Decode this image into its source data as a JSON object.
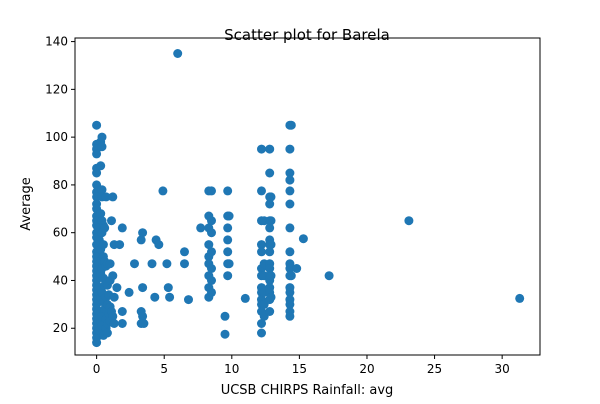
{
  "chart_data": {
    "type": "scatter",
    "title": "Scatter plot for Barela",
    "xlabel": "UCSB CHIRPS Rainfall: avg",
    "ylabel": "Average",
    "xlim": [
      -1.6,
      32.8
    ],
    "ylim": [
      8.8,
      141.5
    ],
    "xticks": [
      0,
      5,
      10,
      15,
      20,
      25,
      30
    ],
    "yticks": [
      20,
      40,
      60,
      80,
      100,
      120,
      140
    ],
    "grid": false,
    "legend": "none",
    "marker_color": "#1f77b4",
    "series": [
      {
        "points": [
          [
            0.0,
            105.0
          ],
          [
            0.0,
            97.0
          ],
          [
            0.0,
            95.0
          ],
          [
            0.0,
            93.0
          ],
          [
            0.0,
            87.0
          ],
          [
            0.0,
            85.0
          ],
          [
            0.0,
            80.0
          ],
          [
            0.0,
            77.0
          ],
          [
            0.0,
            75.0
          ],
          [
            0.0,
            72.0
          ],
          [
            0.0,
            70.0
          ],
          [
            0.0,
            67.0
          ],
          [
            0.0,
            65.0
          ],
          [
            0.0,
            63.0
          ],
          [
            0.0,
            60.0
          ],
          [
            0.0,
            58.0
          ],
          [
            0.0,
            55.0
          ],
          [
            0.0,
            52.0
          ],
          [
            0.0,
            50.0
          ],
          [
            0.0,
            48.0
          ],
          [
            0.0,
            46.0
          ],
          [
            0.0,
            44.0
          ],
          [
            0.0,
            42.0
          ],
          [
            0.0,
            40.0
          ],
          [
            0.0,
            38.0
          ],
          [
            0.0,
            36.0
          ],
          [
            0.0,
            34.0
          ],
          [
            0.0,
            32.0
          ],
          [
            0.0,
            30.0
          ],
          [
            0.0,
            28.0
          ],
          [
            0.0,
            26.0
          ],
          [
            0.0,
            24.0
          ],
          [
            0.0,
            22.0
          ],
          [
            0.0,
            20.0
          ],
          [
            0.0,
            18.0
          ],
          [
            0.0,
            16.0
          ],
          [
            0.0,
            14.0
          ],
          [
            0.2,
            62.0
          ],
          [
            0.2,
            57.0
          ],
          [
            0.2,
            47.0
          ],
          [
            0.2,
            37.0
          ],
          [
            0.2,
            27.0
          ],
          [
            0.2,
            19.0
          ],
          [
            0.3,
            98.0
          ],
          [
            0.3,
            88.0
          ],
          [
            0.3,
            68.0
          ],
          [
            0.3,
            53.0
          ],
          [
            0.3,
            43.0
          ],
          [
            0.3,
            33.0
          ],
          [
            0.3,
            23.0
          ],
          [
            0.4,
            100.0
          ],
          [
            0.4,
            96.0
          ],
          [
            0.4,
            78.0
          ],
          [
            0.4,
            75.0
          ],
          [
            0.4,
            65.0
          ],
          [
            0.4,
            60.0
          ],
          [
            0.4,
            45.0
          ],
          [
            0.4,
            35.0
          ],
          [
            0.4,
            25.0
          ],
          [
            0.4,
            21.0
          ],
          [
            0.5,
            63.0
          ],
          [
            0.5,
            55.0
          ],
          [
            0.5,
            50.0
          ],
          [
            0.5,
            41.0
          ],
          [
            0.5,
            31.0
          ],
          [
            0.5,
            17.0
          ],
          [
            0.6,
            62.0
          ],
          [
            0.6,
            48.0
          ],
          [
            0.6,
            38.0
          ],
          [
            0.6,
            28.0
          ],
          [
            0.7,
            75.0
          ],
          [
            0.7,
            46.0
          ],
          [
            0.7,
            33.0
          ],
          [
            0.7,
            24.0
          ],
          [
            0.7,
            20.0
          ],
          [
            0.8,
            47.0
          ],
          [
            0.8,
            38.0
          ],
          [
            0.8,
            30.0
          ],
          [
            0.8,
            22.0
          ],
          [
            0.8,
            18.0
          ],
          [
            0.9,
            34.0
          ],
          [
            0.9,
            26.0
          ],
          [
            1.0,
            47.0
          ],
          [
            1.0,
            40.0
          ],
          [
            1.0,
            29.0
          ],
          [
            1.0,
            23.0
          ],
          [
            1.1,
            65.0
          ],
          [
            1.1,
            27.0
          ],
          [
            1.2,
            75.0
          ],
          [
            1.2,
            42.0
          ],
          [
            1.2,
            25.0
          ],
          [
            1.3,
            55.0
          ],
          [
            1.3,
            33.0
          ],
          [
            1.3,
            22.0
          ],
          [
            1.5,
            37.0
          ],
          [
            1.7,
            55.0
          ],
          [
            1.9,
            62.0
          ],
          [
            1.9,
            27.0
          ],
          [
            1.9,
            22.0
          ],
          [
            2.4,
            35.0
          ],
          [
            2.8,
            47.0
          ],
          [
            3.3,
            57.0
          ],
          [
            3.3,
            27.0
          ],
          [
            3.3,
            22.0
          ],
          [
            3.4,
            60.0
          ],
          [
            3.4,
            37.0
          ],
          [
            3.4,
            25.0
          ],
          [
            3.5,
            22.0
          ],
          [
            4.1,
            47.0
          ],
          [
            4.3,
            33.0
          ],
          [
            4.4,
            57.0
          ],
          [
            4.6,
            55.0
          ],
          [
            4.9,
            77.5
          ],
          [
            5.2,
            47.0
          ],
          [
            5.3,
            37.0
          ],
          [
            5.4,
            33.0
          ],
          [
            6.0,
            135.0
          ],
          [
            6.5,
            52.0
          ],
          [
            6.5,
            47.0
          ],
          [
            6.8,
            32.0
          ],
          [
            7.7,
            62.0
          ],
          [
            8.3,
            77.5
          ],
          [
            8.3,
            67.0
          ],
          [
            8.3,
            62.0
          ],
          [
            8.3,
            55.0
          ],
          [
            8.3,
            50.0
          ],
          [
            8.3,
            47.0
          ],
          [
            8.3,
            42.0
          ],
          [
            8.3,
            37.0
          ],
          [
            8.3,
            33.0
          ],
          [
            8.5,
            77.5
          ],
          [
            8.5,
            65.0
          ],
          [
            8.5,
            60.0
          ],
          [
            8.5,
            52.0
          ],
          [
            8.5,
            45.0
          ],
          [
            8.5,
            40.0
          ],
          [
            8.5,
            35.0
          ],
          [
            9.5,
            25.0
          ],
          [
            9.5,
            17.5
          ],
          [
            9.7,
            77.5
          ],
          [
            9.7,
            67.0
          ],
          [
            9.7,
            62.0
          ],
          [
            9.7,
            57.0
          ],
          [
            9.7,
            52.0
          ],
          [
            9.7,
            47.0
          ],
          [
            9.7,
            42.0
          ],
          [
            9.8,
            67.0
          ],
          [
            9.8,
            47.0
          ],
          [
            11.0,
            32.5
          ],
          [
            12.2,
            95.0
          ],
          [
            12.2,
            77.5
          ],
          [
            12.2,
            65.0
          ],
          [
            12.2,
            55.0
          ],
          [
            12.2,
            52.0
          ],
          [
            12.2,
            45.0
          ],
          [
            12.2,
            42.0
          ],
          [
            12.2,
            37.0
          ],
          [
            12.2,
            35.0
          ],
          [
            12.2,
            32.0
          ],
          [
            12.2,
            30.0
          ],
          [
            12.2,
            27.0
          ],
          [
            12.2,
            22.0
          ],
          [
            12.2,
            18.0
          ],
          [
            12.4,
            65.0
          ],
          [
            12.4,
            47.0
          ],
          [
            12.4,
            42.0
          ],
          [
            12.4,
            35.0
          ],
          [
            12.4,
            30.0
          ],
          [
            12.4,
            25.0
          ],
          [
            12.8,
            95.0
          ],
          [
            12.8,
            85.0
          ],
          [
            12.8,
            75.0
          ],
          [
            12.8,
            72.0
          ],
          [
            12.8,
            65.0
          ],
          [
            12.8,
            62.0
          ],
          [
            12.8,
            57.0
          ],
          [
            12.8,
            55.0
          ],
          [
            12.8,
            52.0
          ],
          [
            12.8,
            47.0
          ],
          [
            12.8,
            45.0
          ],
          [
            12.8,
            42.0
          ],
          [
            12.8,
            40.0
          ],
          [
            12.8,
            37.0
          ],
          [
            12.8,
            35.0
          ],
          [
            12.8,
            32.0
          ],
          [
            12.8,
            27.0
          ],
          [
            12.9,
            75.0
          ],
          [
            12.9,
            65.0
          ],
          [
            12.9,
            55.0
          ],
          [
            12.9,
            42.0
          ],
          [
            12.9,
            33.0
          ],
          [
            14.3,
            105.0
          ],
          [
            14.3,
            95.0
          ],
          [
            14.3,
            85.0
          ],
          [
            14.3,
            82.0
          ],
          [
            14.3,
            77.5
          ],
          [
            14.3,
            72.0
          ],
          [
            14.3,
            62.0
          ],
          [
            14.3,
            52.0
          ],
          [
            14.3,
            47.0
          ],
          [
            14.3,
            45.0
          ],
          [
            14.3,
            42.0
          ],
          [
            14.3,
            37.0
          ],
          [
            14.3,
            35.0
          ],
          [
            14.3,
            32.0
          ],
          [
            14.3,
            30.0
          ],
          [
            14.3,
            27.0
          ],
          [
            14.3,
            25.0
          ],
          [
            14.4,
            105.0
          ],
          [
            14.4,
            42.0
          ],
          [
            14.8,
            45.0
          ],
          [
            15.3,
            57.5
          ],
          [
            17.2,
            42.0
          ],
          [
            23.1,
            65.0
          ],
          [
            31.3,
            32.5
          ]
        ]
      }
    ]
  }
}
